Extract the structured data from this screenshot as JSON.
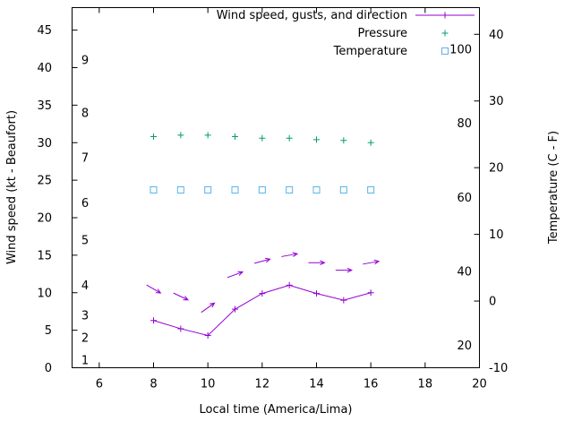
{
  "figure": {
    "background": "#ffffff",
    "border_color": "#000000",
    "text_color": "#000000"
  },
  "chart_data": {
    "type": "line",
    "xlabel": "Local time (America/Lima)",
    "ylabel_left": "Wind speed (kt - Beaufort)",
    "ylabel_right": "Temperature (C - F)",
    "xlim": [
      5,
      20
    ],
    "x_ticks": [
      6,
      8,
      10,
      12,
      14,
      16,
      18,
      20
    ],
    "ylim_left_kt": [
      0,
      48
    ],
    "left_ticks_kt": [
      0,
      5,
      10,
      15,
      20,
      25,
      30,
      35,
      40,
      45
    ],
    "beaufort_scale": [
      {
        "label": "1",
        "kt": 1
      },
      {
        "label": "2",
        "kt": 4
      },
      {
        "label": "3",
        "kt": 7
      },
      {
        "label": "4",
        "kt": 11
      },
      {
        "label": "5",
        "kt": 17
      },
      {
        "label": "6",
        "kt": 22
      },
      {
        "label": "7",
        "kt": 28
      },
      {
        "label": "8",
        "kt": 34
      },
      {
        "label": "9",
        "kt": 41
      }
    ],
    "ylim_right_C": [
      -10,
      44
    ],
    "right_ticks_C": [
      -10,
      0,
      10,
      20,
      30,
      40
    ],
    "f_scale": [
      20,
      40,
      60,
      80,
      100
    ],
    "grid": false,
    "legend_position": "top-right-inside",
    "legend": {
      "entries": [
        {
          "label": "Wind speed, gusts, and direction",
          "marker": "line-plus",
          "color": "#9400d3"
        },
        {
          "label": "Pressure",
          "marker": "plus",
          "color": "#009e73"
        },
        {
          "label": "Temperature",
          "marker": "open-square",
          "color": "#56b4e9"
        }
      ]
    },
    "series": [
      {
        "name": "Wind speed",
        "color": "#9400d3",
        "marker": "plus",
        "line": true,
        "x": [
          8,
          9,
          10,
          11,
          12,
          13,
          14,
          15,
          16
        ],
        "y_kt": [
          6.3,
          5.2,
          4.3,
          7.8,
          9.9,
          11.0,
          9.9,
          9.0,
          10.0
        ]
      },
      {
        "name": "Wind gusts and direction",
        "color": "#9400d3",
        "marker": "arrow",
        "line": false,
        "x": [
          8,
          9,
          10,
          11,
          12,
          13,
          14,
          15,
          16
        ],
        "y_kt": [
          10.5,
          9.5,
          8.0,
          12.4,
          14.2,
          15.0,
          14.0,
          13.0,
          14.0
        ],
        "dir_deg": [
          30,
          25,
          -35,
          -20,
          -15,
          -10,
          0,
          0,
          -10
        ]
      },
      {
        "name": "Pressure",
        "color": "#009e73",
        "marker": "plus",
        "line": false,
        "x": [
          8,
          9,
          10,
          11,
          12,
          13,
          14,
          15,
          16
        ],
        "y_inHg": [
          30.8,
          31.0,
          31.0,
          30.8,
          30.6,
          30.6,
          30.4,
          30.3,
          30.0
        ]
      },
      {
        "name": "Temperature",
        "color": "#56b4e9",
        "marker": "open-square",
        "line": false,
        "x": [
          8,
          9,
          10,
          11,
          12,
          13,
          14,
          15,
          16
        ],
        "y_F": [
          62,
          62,
          62,
          62,
          62,
          62,
          62,
          62,
          62
        ]
      }
    ]
  }
}
